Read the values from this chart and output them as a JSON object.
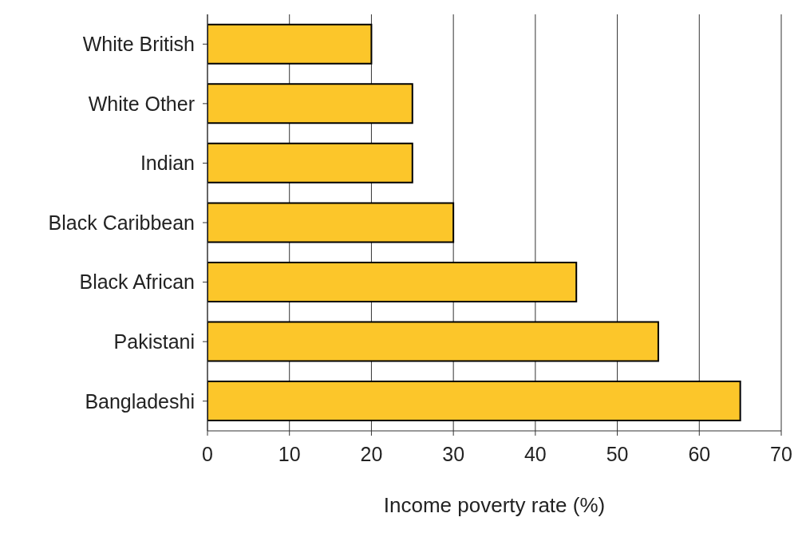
{
  "chart_data": {
    "type": "bar",
    "orientation": "horizontal",
    "xlabel": "Income poverty rate (%)",
    "categories": [
      "White British",
      "White Other",
      "Indian",
      "Black Caribbean",
      "Black African",
      "Pakistani",
      "Bangladeshi"
    ],
    "values": [
      20,
      25,
      25,
      30,
      45,
      55,
      65
    ],
    "color": "#fcc62a",
    "xlim": [
      0,
      70
    ],
    "xticks": [
      0,
      10,
      20,
      30,
      40,
      50,
      60,
      70
    ],
    "grid": "x"
  }
}
